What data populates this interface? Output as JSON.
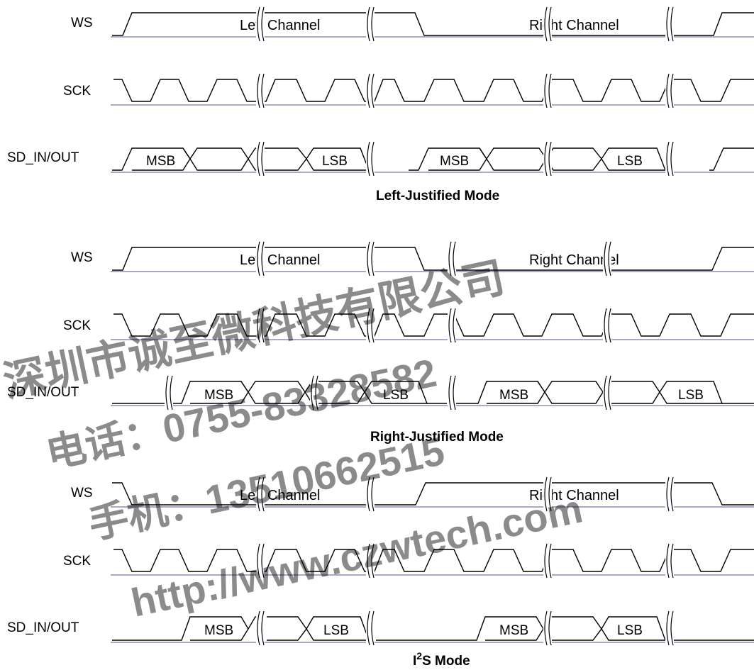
{
  "panels": [
    {
      "mode_title": "Left-Justified Mode",
      "ws_label": "WS",
      "sck_label": "SCK",
      "sd_label": "SD_IN/OUT",
      "channel_labels": [
        "Left Channel",
        "Right Channel"
      ],
      "sd_boxes": [
        "MSB",
        "LSB",
        "MSB",
        "LSB"
      ]
    },
    {
      "mode_title": "Right-Justified Mode",
      "ws_label": "WS",
      "sck_label": "SCK",
      "sd_label": "SD_IN/OUT",
      "channel_labels": [
        "Left Channel",
        "Right Channel"
      ],
      "sd_boxes": [
        "MSB",
        "LSB",
        "MSB",
        "LSB"
      ]
    },
    {
      "mode_title_main": "I",
      "mode_title_sup": "2",
      "mode_title_rest": "S Mode",
      "ws_label": "WS",
      "sck_label": "SCK",
      "sd_label": "SD_IN/OUT",
      "channel_labels": [
        "Left Channel",
        "Right Channel"
      ],
      "sd_boxes": [
        "MSB",
        "LSB",
        "MSB",
        "LSB"
      ]
    }
  ],
  "watermark": {
    "line1": "深圳市诚至微科技有限公司",
    "line2": "电话：0755-83328582",
    "line3": "手机：13510662515",
    "line4": "http://www.czwtech.com",
    "color": "#e53c3c"
  }
}
